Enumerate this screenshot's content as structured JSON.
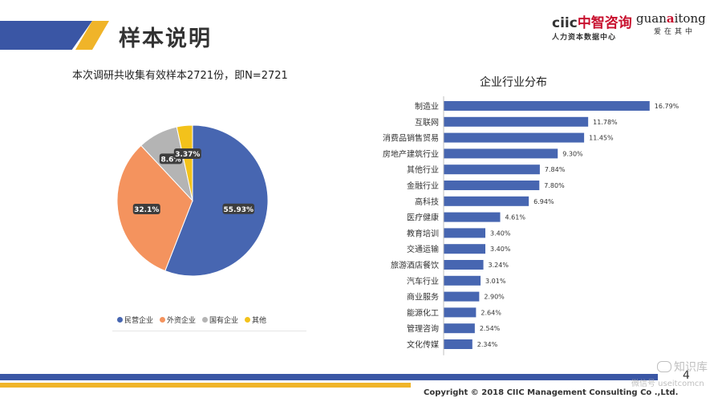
{
  "header": {
    "title": "样本说明",
    "logo1_latin": "ciic",
    "logo1_cn": "中智咨询",
    "logo1_sub": "人力资本数据中心",
    "logo2_pre": "guan",
    "logo2_a": "a",
    "logo2_post": "itong",
    "logo2_sub": "爱在其中"
  },
  "subtitle": "本次调研共收集有效样本2721份，即N=2721",
  "colors": {
    "blue": "#4766b1",
    "orange": "#f4935e",
    "gray": "#b4b4b4",
    "yellow": "#f3c21b",
    "bar": "#4766b1"
  },
  "chart_data": [
    {
      "type": "pie",
      "title": "",
      "labels": [
        "民营企业",
        "外资企业",
        "国有企业",
        "其他"
      ],
      "values": [
        55.93,
        32.1,
        8.6,
        3.37
      ],
      "value_labels": [
        "55.93%",
        "32.1%",
        "8.6%",
        "3.37%"
      ],
      "legend": "bottom"
    },
    {
      "type": "bar",
      "orientation": "horizontal",
      "title": "企业行业分布",
      "categories": [
        "制造业",
        "互联网",
        "消费品销售贸易",
        "房地产建筑行业",
        "其他行业",
        "金融行业",
        "高科技",
        "医疗健康",
        "教育培训",
        "交通运输",
        "旅游酒店餐饮",
        "汽车行业",
        "商业服务",
        "能源化工",
        "管理咨询",
        "文化传媒"
      ],
      "values": [
        16.79,
        11.78,
        11.45,
        9.3,
        7.84,
        7.8,
        6.94,
        4.61,
        3.4,
        3.4,
        3.24,
        3.01,
        2.9,
        2.64,
        2.54,
        2.34
      ],
      "value_labels": [
        "16.79%",
        "11.78%",
        "11.45%",
        "9.30%",
        "7.84%",
        "7.80%",
        "6.94%",
        "4.61%",
        "3.40%",
        "3.40%",
        "3.24%",
        "3.01%",
        "2.90%",
        "2.64%",
        "2.54%",
        "2.34%"
      ],
      "xlim": [
        0,
        17
      ]
    }
  ],
  "footer": {
    "page": "4",
    "copyright": "Copyright © 2018 CIIC Management Consulting Co .,Ltd.",
    "watermark1": "知识库",
    "watermark2": "微信号 useitcomcn"
  }
}
